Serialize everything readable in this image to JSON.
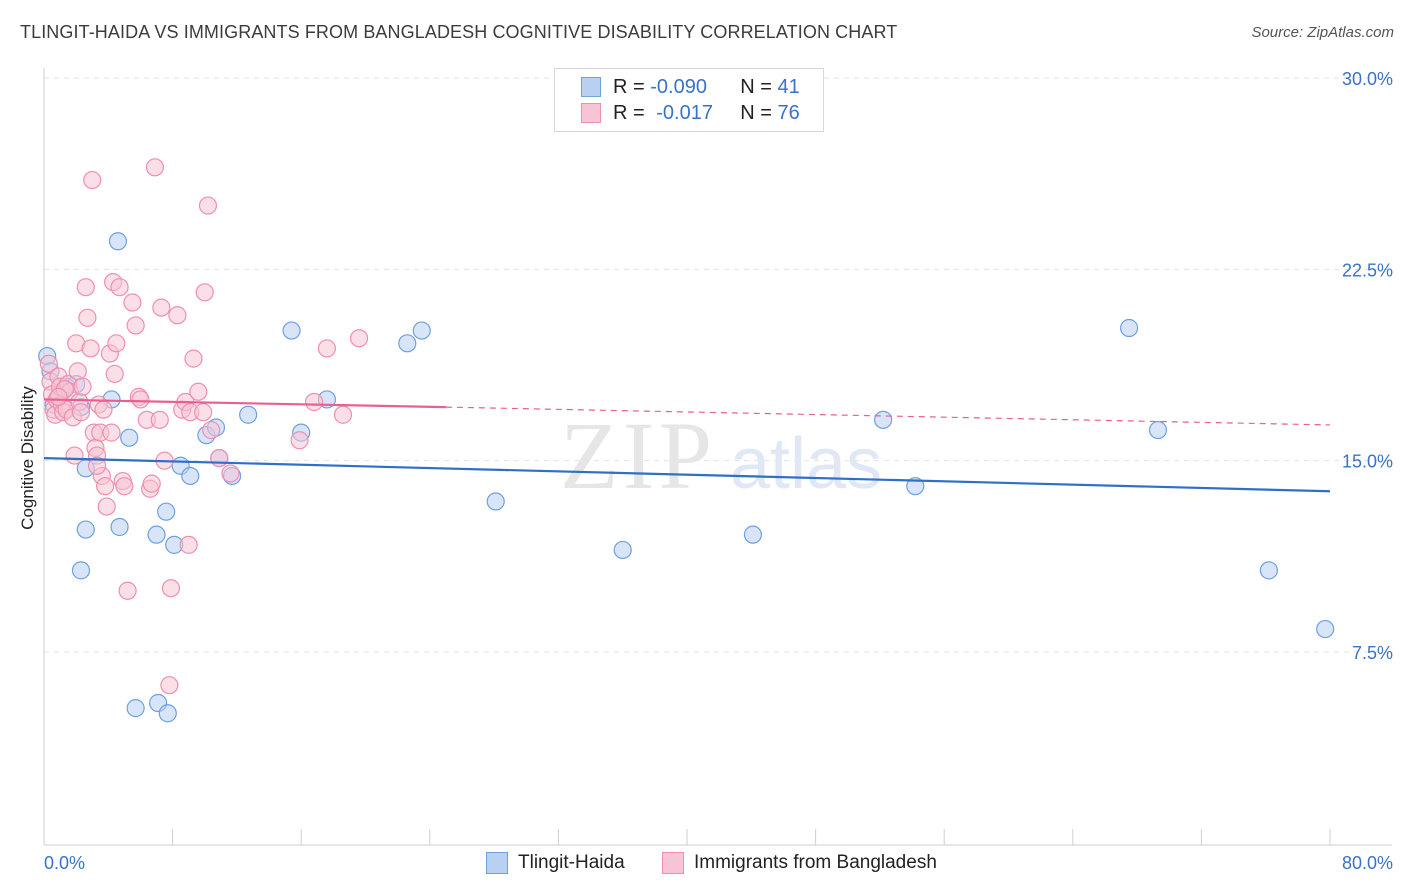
{
  "chart_data": {
    "type": "scatter",
    "title": "TLINGIT-HAIDA VS IMMIGRANTS FROM BANGLADESH COGNITIVE DISABILITY CORRELATION CHART",
    "source": "Source: ZipAtlas.com",
    "xlabel": "",
    "ylabel": "Cognitive Disability",
    "xlim": [
      0,
      80
    ],
    "ylim": [
      0,
      31
    ],
    "x_tick_labels": [
      "0.0%",
      "80.0%"
    ],
    "y_ticks": [
      7.5,
      15.0,
      22.5,
      30.0
    ],
    "y_tick_labels": [
      "7.5%",
      "15.0%",
      "22.5%",
      "30.0%"
    ],
    "grid": true,
    "legend_position": "top-center",
    "watermark": "ZIPatlas",
    "series": [
      {
        "name": "Tlingit-Haida",
        "color": "#6fa0e0",
        "fill": "#b8d0f2",
        "line_color": "#2f6fc8",
        "r_label": "R =",
        "r_value": "-0.090",
        "n_label": "N =",
        "n_value": "41",
        "trend": {
          "x0": 0.0,
          "y0": 15.1,
          "x1": 80.0,
          "y1": 13.8
        },
        "points": [
          [
            0.2,
            19.1
          ],
          [
            0.4,
            18.5
          ],
          [
            0.6,
            17.2
          ],
          [
            1.4,
            17.9
          ],
          [
            1.0,
            17.6
          ],
          [
            2.0,
            18.0
          ],
          [
            2.3,
            17.1
          ],
          [
            4.2,
            17.4
          ],
          [
            4.6,
            23.6
          ],
          [
            5.3,
            15.9
          ],
          [
            4.7,
            12.4
          ],
          [
            2.6,
            14.7
          ],
          [
            2.3,
            10.7
          ],
          [
            2.6,
            12.3
          ],
          [
            7.0,
            12.1
          ],
          [
            7.6,
            13.0
          ],
          [
            8.1,
            11.7
          ],
          [
            8.5,
            14.8
          ],
          [
            9.1,
            14.4
          ],
          [
            10.1,
            16.0
          ],
          [
            10.7,
            16.3
          ],
          [
            10.9,
            15.1
          ],
          [
            11.7,
            14.4
          ],
          [
            12.7,
            16.8
          ],
          [
            15.4,
            20.1
          ],
          [
            16.0,
            16.1
          ],
          [
            17.6,
            17.4
          ],
          [
            22.6,
            19.6
          ],
          [
            23.5,
            20.1
          ],
          [
            28.1,
            13.4
          ],
          [
            36.0,
            11.5
          ],
          [
            44.1,
            12.1
          ],
          [
            52.2,
            16.6
          ],
          [
            54.2,
            14.0
          ],
          [
            67.5,
            20.2
          ],
          [
            69.3,
            16.2
          ],
          [
            76.2,
            10.7
          ],
          [
            79.7,
            8.4
          ],
          [
            5.7,
            5.3
          ],
          [
            7.1,
            5.5
          ],
          [
            7.7,
            5.1
          ]
        ]
      },
      {
        "name": "Immigrants from Bangladesh",
        "color": "#ee8fb0",
        "fill": "#f7c4d4",
        "line_color": "#e8608f",
        "r_label": "R =",
        "r_value": "-0.017",
        "n_label": "N =",
        "n_value": "76",
        "trend": {
          "x0": 0.0,
          "y0": 17.4,
          "x1": 25.0,
          "y1": 17.1
        },
        "trend_dashed": {
          "x0": 25.0,
          "y0": 17.1,
          "x1": 80.0,
          "y1": 16.4
        },
        "points": [
          [
            0.3,
            18.8
          ],
          [
            0.4,
            18.1
          ],
          [
            0.5,
            17.6
          ],
          [
            0.6,
            17.0
          ],
          [
            0.7,
            16.8
          ],
          [
            0.8,
            17.4
          ],
          [
            0.9,
            18.3
          ],
          [
            1.0,
            17.9
          ],
          [
            1.1,
            17.2
          ],
          [
            1.2,
            16.9
          ],
          [
            1.4,
            17.0
          ],
          [
            1.5,
            18.0
          ],
          [
            1.6,
            17.7
          ],
          [
            1.8,
            16.7
          ],
          [
            1.9,
            15.2
          ],
          [
            2.0,
            19.6
          ],
          [
            2.1,
            18.5
          ],
          [
            2.2,
            17.3
          ],
          [
            2.3,
            16.9
          ],
          [
            2.6,
            21.8
          ],
          [
            2.7,
            20.6
          ],
          [
            2.9,
            19.4
          ],
          [
            3.0,
            26.0
          ],
          [
            3.1,
            16.1
          ],
          [
            3.2,
            15.5
          ],
          [
            3.3,
            15.2
          ],
          [
            3.4,
            17.2
          ],
          [
            3.5,
            16.1
          ],
          [
            3.6,
            14.4
          ],
          [
            3.7,
            17.0
          ],
          [
            3.8,
            14.0
          ],
          [
            3.9,
            13.2
          ],
          [
            4.1,
            19.2
          ],
          [
            4.2,
            16.1
          ],
          [
            4.3,
            22.0
          ],
          [
            4.4,
            18.4
          ],
          [
            4.5,
            19.6
          ],
          [
            4.7,
            21.8
          ],
          [
            4.9,
            14.2
          ],
          [
            5.0,
            14.0
          ],
          [
            5.2,
            9.9
          ],
          [
            5.5,
            21.2
          ],
          [
            5.7,
            20.3
          ],
          [
            5.9,
            17.5
          ],
          [
            6.0,
            17.4
          ],
          [
            6.4,
            16.6
          ],
          [
            6.6,
            13.9
          ],
          [
            6.7,
            14.1
          ],
          [
            6.9,
            26.5
          ],
          [
            7.2,
            16.6
          ],
          [
            7.3,
            21.0
          ],
          [
            7.5,
            15.0
          ],
          [
            7.8,
            6.2
          ],
          [
            7.9,
            10.0
          ],
          [
            8.3,
            20.7
          ],
          [
            8.6,
            17.0
          ],
          [
            8.8,
            17.3
          ],
          [
            9.0,
            11.7
          ],
          [
            9.1,
            16.9
          ],
          [
            9.3,
            19.0
          ],
          [
            9.6,
            17.7
          ],
          [
            9.9,
            16.9
          ],
          [
            10.0,
            21.6
          ],
          [
            10.2,
            25.0
          ],
          [
            10.4,
            16.2
          ],
          [
            10.9,
            15.1
          ],
          [
            11.6,
            14.5
          ],
          [
            15.9,
            15.8
          ],
          [
            16.8,
            17.3
          ],
          [
            17.6,
            19.4
          ],
          [
            18.6,
            16.8
          ],
          [
            19.6,
            19.8
          ],
          [
            3.3,
            14.8
          ],
          [
            2.4,
            17.9
          ],
          [
            1.3,
            17.8
          ],
          [
            0.9,
            17.5
          ]
        ]
      }
    ]
  }
}
